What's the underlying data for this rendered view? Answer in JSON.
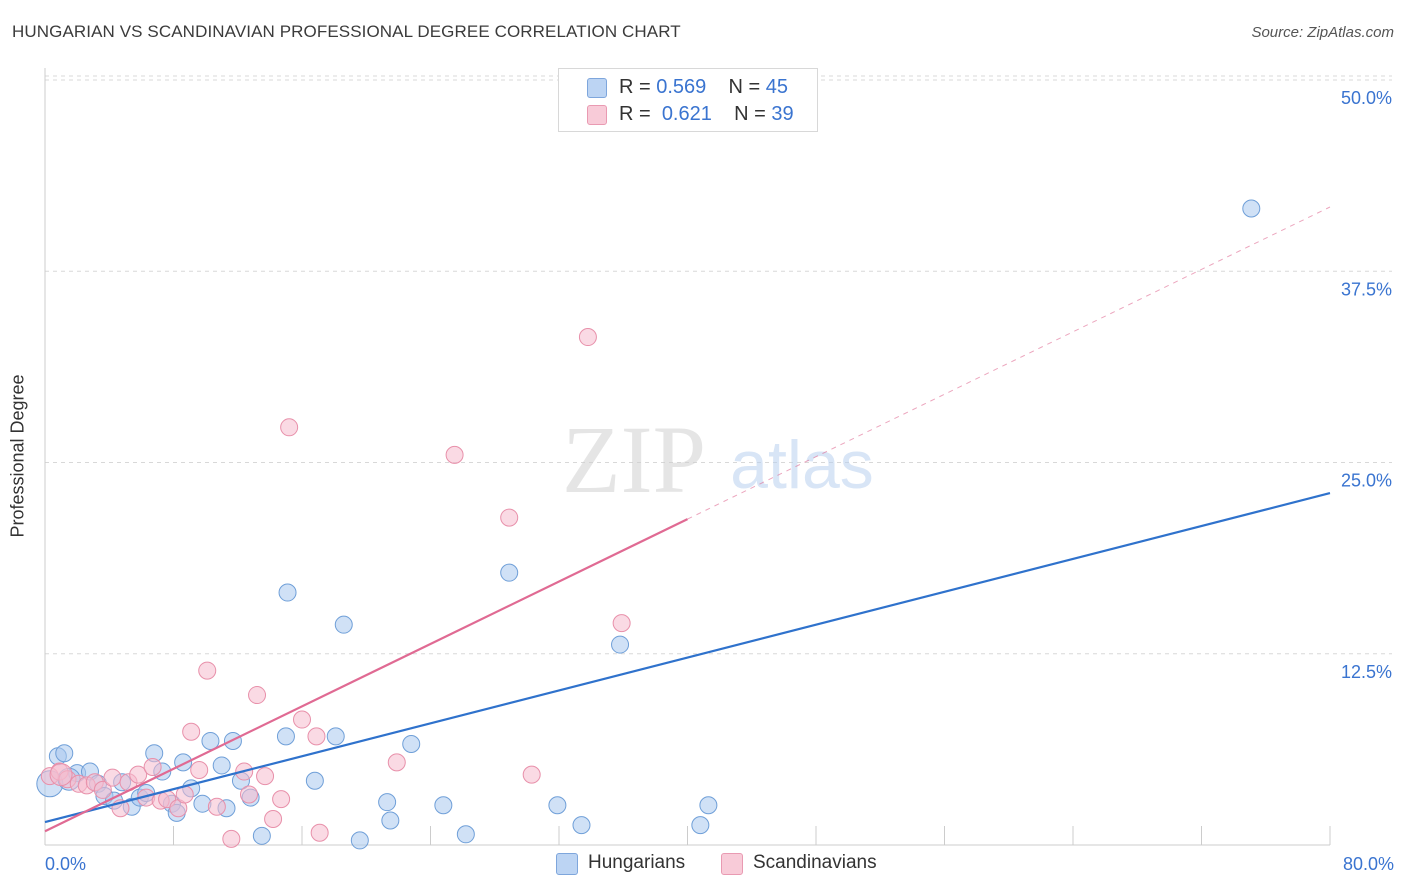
{
  "title": "HUNGARIAN VS SCANDINAVIAN PROFESSIONAL DEGREE CORRELATION CHART",
  "source": "Source: ZipAtlas.com",
  "legend": {
    "rows": [
      {
        "r_label": "R =",
        "r_value": "0.569",
        "n_label": "N =",
        "n_value": "45"
      },
      {
        "r_label": "R =",
        "r_value": "0.621",
        "n_label": "N =",
        "n_value": "39"
      }
    ]
  },
  "bottom_legend": [
    "Hungarians",
    "Scandinavians"
  ],
  "watermark": {
    "part1": "ZIP",
    "part2": "atlas"
  },
  "colors": {
    "blue_fill": "#aac8ee",
    "blue_stroke": "#6f9fd8",
    "blue_line": "#2f72cc",
    "pink_fill": "#f5bccd",
    "pink_stroke": "#e890aa",
    "pink_line": "#e06a93",
    "axis_text": "#3a74d0",
    "grid": "#d8d8d8"
  },
  "chart_data": {
    "type": "scatter",
    "title": "HUNGARIAN VS SCANDINAVIAN PROFESSIONAL DEGREE CORRELATION CHART",
    "xlabel": "",
    "ylabel": "Professional Degree",
    "xlim": [
      0,
      80
    ],
    "ylim": [
      0,
      50
    ],
    "x_tick_labels": [
      "0.0%",
      "80.0%"
    ],
    "y_ticks": [
      12.5,
      25.0,
      37.5,
      50.0
    ],
    "y_tick_labels": [
      "12.5%",
      "25.0%",
      "37.5%",
      "50.0%"
    ],
    "series": [
      {
        "name": "Hungarians",
        "r": 0.569,
        "n": 45,
        "trend": {
          "x0": 0,
          "y0": 1.5,
          "x1": 80,
          "y1": 23.0,
          "dashed_to": null
        },
        "points": [
          [
            0.3,
            4.0
          ],
          [
            0.8,
            5.8
          ],
          [
            1.2,
            6.0
          ],
          [
            2.0,
            4.7
          ],
          [
            2.8,
            4.8
          ],
          [
            3.3,
            4.0
          ],
          [
            3.7,
            3.2
          ],
          [
            4.3,
            2.9
          ],
          [
            4.8,
            4.1
          ],
          [
            5.4,
            2.5
          ],
          [
            5.9,
            3.1
          ],
          [
            6.3,
            3.4
          ],
          [
            6.8,
            6.0
          ],
          [
            7.3,
            4.8
          ],
          [
            7.9,
            2.7
          ],
          [
            8.2,
            2.1
          ],
          [
            8.6,
            5.4
          ],
          [
            9.1,
            3.7
          ],
          [
            9.8,
            2.7
          ],
          [
            10.3,
            6.8
          ],
          [
            11.0,
            5.2
          ],
          [
            11.3,
            2.4
          ],
          [
            11.7,
            6.8
          ],
          [
            12.2,
            4.2
          ],
          [
            12.8,
            3.1
          ],
          [
            13.5,
            0.6
          ],
          [
            15.0,
            7.1
          ],
          [
            15.1,
            16.5
          ],
          [
            16.8,
            4.2
          ],
          [
            18.1,
            7.1
          ],
          [
            18.6,
            14.4
          ],
          [
            19.6,
            0.3
          ],
          [
            21.3,
            2.8
          ],
          [
            21.5,
            1.6
          ],
          [
            22.8,
            6.6
          ],
          [
            24.8,
            2.6
          ],
          [
            26.2,
            0.7
          ],
          [
            28.9,
            17.8
          ],
          [
            31.9,
            2.6
          ],
          [
            33.4,
            1.3
          ],
          [
            35.8,
            13.1
          ],
          [
            40.8,
            1.3
          ],
          [
            41.3,
            2.6
          ],
          [
            75.1,
            41.6
          ],
          [
            1.5,
            4.3
          ]
        ]
      },
      {
        "name": "Scandinavians",
        "r": 0.621,
        "n": 39,
        "trend": {
          "x0": 0,
          "y0": 0.9,
          "x1": 40,
          "y1": 21.3,
          "dashed_to": [
            80,
            41.7
          ]
        },
        "points": [
          [
            0.3,
            4.5
          ],
          [
            0.9,
            4.8
          ],
          [
            1.4,
            4.3
          ],
          [
            2.1,
            4.0
          ],
          [
            2.6,
            3.9
          ],
          [
            3.1,
            4.1
          ],
          [
            3.6,
            3.6
          ],
          [
            4.2,
            4.4
          ],
          [
            4.7,
            2.4
          ],
          [
            5.2,
            4.1
          ],
          [
            5.8,
            4.6
          ],
          [
            6.3,
            3.1
          ],
          [
            6.7,
            5.1
          ],
          [
            7.2,
            2.9
          ],
          [
            7.6,
            3.0
          ],
          [
            8.3,
            2.4
          ],
          [
            8.7,
            3.3
          ],
          [
            9.1,
            7.4
          ],
          [
            9.6,
            4.9
          ],
          [
            10.1,
            11.4
          ],
          [
            10.7,
            2.5
          ],
          [
            11.6,
            0.4
          ],
          [
            12.4,
            4.8
          ],
          [
            12.7,
            3.3
          ],
          [
            13.2,
            9.8
          ],
          [
            13.7,
            4.5
          ],
          [
            14.2,
            1.7
          ],
          [
            14.7,
            3.0
          ],
          [
            15.2,
            27.3
          ],
          [
            16.0,
            8.2
          ],
          [
            16.9,
            7.1
          ],
          [
            17.1,
            0.8
          ],
          [
            21.9,
            5.4
          ],
          [
            25.5,
            25.5
          ],
          [
            28.9,
            21.4
          ],
          [
            30.3,
            4.6
          ],
          [
            33.8,
            33.2
          ],
          [
            35.9,
            14.5
          ],
          [
            1.0,
            4.6
          ]
        ]
      }
    ]
  }
}
